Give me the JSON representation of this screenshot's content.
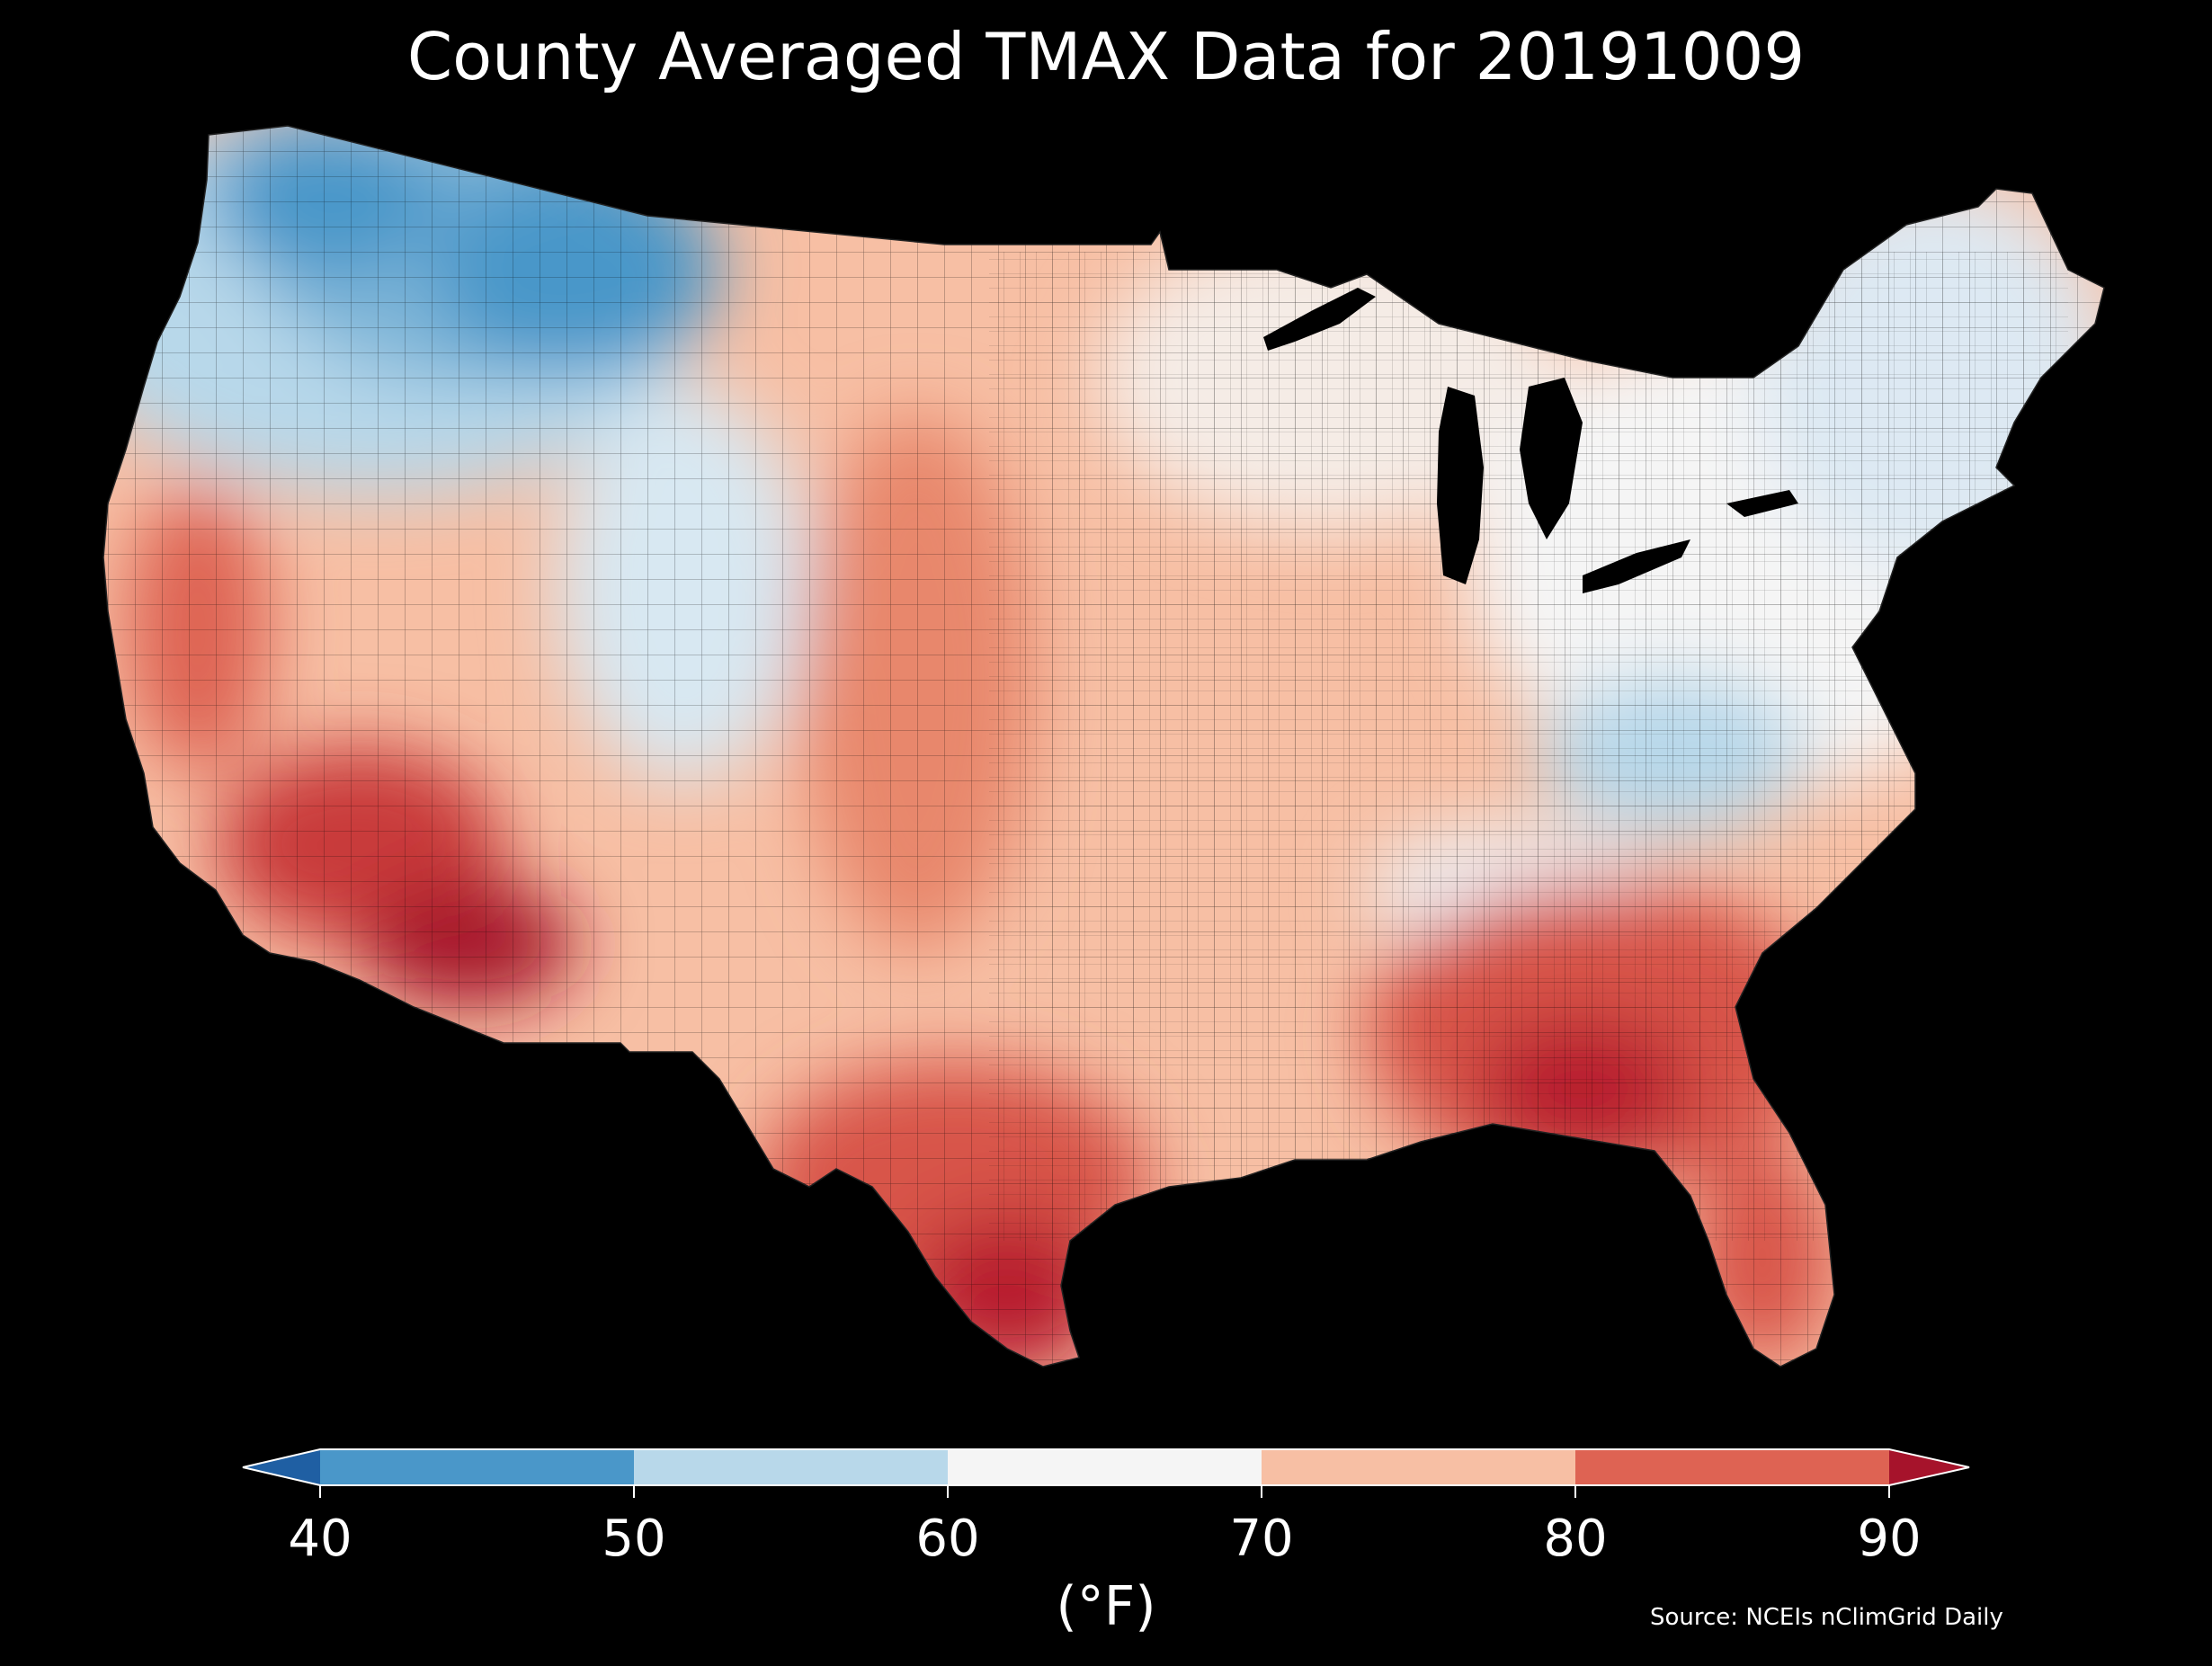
{
  "title": "County Averaged TMAX Data for 20191009",
  "colorbar": {
    "ticks": [
      "40",
      "50",
      "60",
      "70",
      "80",
      "90"
    ],
    "unit_label": "(°F)",
    "bins": [
      {
        "range": "<40",
        "color": "#1f5fa3"
      },
      {
        "range": "40-50",
        "color": "#4a97c9"
      },
      {
        "range": "50-60",
        "color": "#b8d8ea"
      },
      {
        "range": "60-70",
        "color": "#f5f5f5"
      },
      {
        "range": "70-80",
        "color": "#f7bfa4"
      },
      {
        "range": "80-90",
        "color": "#de6353"
      },
      {
        "range": ">90",
        "color": "#a6132b"
      }
    ],
    "extend": "both"
  },
  "source": "Source: NCEIs nClimGrid Daily",
  "map": {
    "region": "Contiguous United States",
    "variable": "TMAX",
    "unit": "°F",
    "date": "20191009",
    "aggregation": "County averaged"
  }
}
